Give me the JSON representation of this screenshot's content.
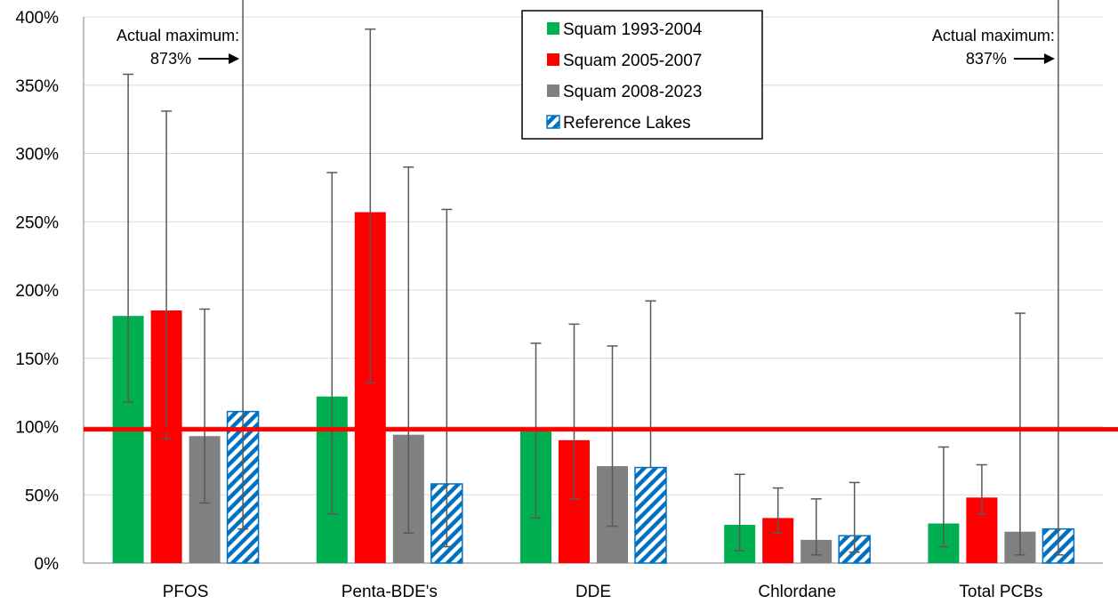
{
  "chart_data": {
    "type": "bar",
    "categories": [
      "PFOS",
      "Penta-BDE's",
      "DDE",
      "Chlordane",
      "Total PCBs"
    ],
    "ylim": [
      0,
      400
    ],
    "yticks": [
      0,
      50,
      100,
      150,
      200,
      250,
      300,
      350,
      400
    ],
    "ytick_suffix": "%",
    "grid": true,
    "legend_position": "top-center",
    "reference_line": {
      "value": 98,
      "color": "#ff0000"
    },
    "series": [
      {
        "name": "Squam 1993-2004",
        "color": "#00b050",
        "pattern": "solid",
        "values": [
          181,
          122,
          97,
          28,
          29
        ],
        "error_low": [
          118,
          36,
          33,
          9,
          12
        ],
        "error_high": [
          358,
          286,
          161,
          65,
          85
        ]
      },
      {
        "name": "Squam 2005-2007",
        "color": "#ff0000",
        "pattern": "solid",
        "values": [
          185,
          257,
          90,
          33,
          48
        ],
        "error_low": [
          91,
          132,
          47,
          22,
          36
        ],
        "error_high": [
          331,
          391,
          175,
          55,
          72
        ]
      },
      {
        "name": "Squam 2008-2023",
        "color": "#808080",
        "pattern": "solid",
        "values": [
          93,
          94,
          71,
          17,
          23
        ],
        "error_low": [
          44,
          22,
          27,
          6,
          6
        ],
        "error_high": [
          186,
          290,
          159,
          47,
          183
        ]
      },
      {
        "name": "Reference Lakes",
        "color": "#0070c0",
        "pattern": "hatched",
        "values": [
          111,
          58,
          70,
          20,
          25
        ],
        "error_low": [
          25,
          12,
          null,
          8,
          6
        ],
        "error_high": [
          873,
          259,
          192,
          59,
          837
        ]
      }
    ],
    "annotations": [
      {
        "line1": "Actual maximum:",
        "line2": "873%",
        "category": 0
      },
      {
        "line1": "Actual maximum:",
        "line2": "837%",
        "category": 4
      }
    ]
  }
}
